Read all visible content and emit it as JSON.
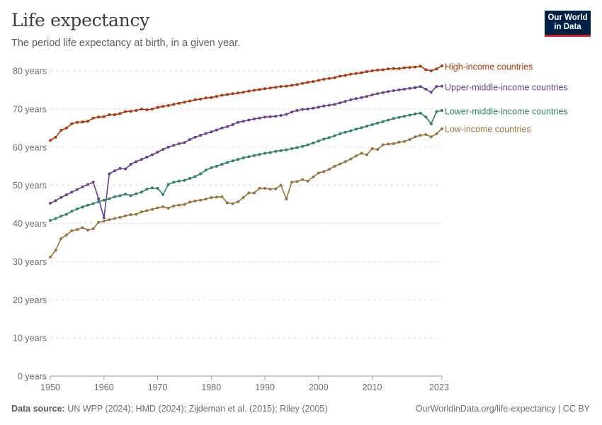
{
  "header": {
    "title": "Life expectancy",
    "subtitle": "The period life expectancy at birth, in a given year."
  },
  "logo": {
    "line1": "Our World",
    "line2": "in Data",
    "bg": "#002147",
    "accent": "#ce261e"
  },
  "footer": {
    "source_label": "Data source:",
    "source_text": "UN WPP (2024); HMD (2024); Zijdeman et al. (2015); Riley (2005)",
    "url_license": "OurWorldinData.org/life-expectancy | CC BY"
  },
  "chart_data": {
    "type": "line",
    "title": "Life expectancy",
    "subtitle": "The period life expectancy at birth, in a given year.",
    "x_ticks": [
      "1950",
      "1960",
      "1970",
      "1980",
      "1990",
      "2000",
      "2010",
      "2023"
    ],
    "y_ticks": [
      "0 years",
      "10 years",
      "20 years",
      "30 years",
      "40 years",
      "50 years",
      "60 years",
      "70 years",
      "80 years"
    ],
    "xlim": [
      1950,
      2023
    ],
    "ylim": [
      0,
      80
    ],
    "grid": "horizontal-dashed",
    "legend": "inline-right",
    "x": [
      1950,
      1951,
      1952,
      1953,
      1954,
      1955,
      1956,
      1957,
      1958,
      1959,
      1960,
      1961,
      1962,
      1963,
      1964,
      1965,
      1966,
      1967,
      1968,
      1969,
      1970,
      1971,
      1972,
      1973,
      1974,
      1975,
      1976,
      1977,
      1978,
      1979,
      1980,
      1981,
      1982,
      1983,
      1984,
      1985,
      1986,
      1987,
      1988,
      1989,
      1990,
      1991,
      1992,
      1993,
      1994,
      1995,
      1996,
      1997,
      1998,
      1999,
      2000,
      2001,
      2002,
      2003,
      2004,
      2005,
      2006,
      2007,
      2008,
      2009,
      2010,
      2011,
      2012,
      2013,
      2014,
      2015,
      2016,
      2017,
      2018,
      2019,
      2020,
      2021,
      2022,
      2023
    ],
    "series": [
      {
        "name": "High-income countries",
        "color": "#b13507",
        "values": [
          61.8,
          62.6,
          64.4,
          65.0,
          66.1,
          66.5,
          66.6,
          66.8,
          67.6,
          67.9,
          68.0,
          68.5,
          68.5,
          68.8,
          69.3,
          69.4,
          69.6,
          70.0,
          69.8,
          70.0,
          70.4,
          70.7,
          70.9,
          71.2,
          71.5,
          71.8,
          72.1,
          72.4,
          72.6,
          72.9,
          73.0,
          73.3,
          73.6,
          73.8,
          74.0,
          74.2,
          74.4,
          74.7,
          74.9,
          75.1,
          75.3,
          75.5,
          75.7,
          75.9,
          76.0,
          76.2,
          76.4,
          76.7,
          77.0,
          77.2,
          77.5,
          77.8,
          78.0,
          78.2,
          78.6,
          78.8,
          79.1,
          79.3,
          79.5,
          79.8,
          80.0,
          80.2,
          80.3,
          80.5,
          80.6,
          80.6,
          80.8,
          80.9,
          81.0,
          81.2,
          80.3,
          80.0,
          80.5,
          81.3
        ]
      },
      {
        "name": "Upper-middle-income countries",
        "color": "#6d3e91",
        "values": [
          45.3,
          46.0,
          46.8,
          47.5,
          48.2,
          48.9,
          49.6,
          50.2,
          50.8,
          46.5,
          41.5,
          53.0,
          53.8,
          54.4,
          54.3,
          55.5,
          56.2,
          56.8,
          57.4,
          58.0,
          58.7,
          59.4,
          60.0,
          60.5,
          60.9,
          61.2,
          62.0,
          62.6,
          63.1,
          63.6,
          64.0,
          64.5,
          65.0,
          65.4,
          65.9,
          66.5,
          66.8,
          67.1,
          67.4,
          67.6,
          67.9,
          68.0,
          68.1,
          68.3,
          68.6,
          69.2,
          69.6,
          69.9,
          70.0,
          70.2,
          70.5,
          70.8,
          71.0,
          71.2,
          71.6,
          72.0,
          72.4,
          72.7,
          73.0,
          73.3,
          73.7,
          74.0,
          74.3,
          74.6,
          74.8,
          75.0,
          75.2,
          75.4,
          75.6,
          75.9,
          75.2,
          74.4,
          75.9,
          76.0
        ]
      },
      {
        "name": "Lower-middle-income countries",
        "color": "#2d8264",
        "values": [
          40.8,
          41.3,
          41.9,
          42.4,
          43.2,
          43.8,
          44.3,
          44.8,
          45.2,
          45.7,
          46.1,
          46.5,
          47.0,
          47.3,
          47.7,
          47.3,
          47.8,
          48.2,
          49.0,
          49.3,
          49.2,
          47.6,
          50.2,
          50.8,
          51.1,
          51.3,
          51.8,
          52.3,
          53.0,
          54.0,
          54.6,
          55.0,
          55.5,
          56.0,
          56.4,
          56.8,
          57.2,
          57.5,
          57.8,
          58.1,
          58.4,
          58.6,
          58.9,
          59.1,
          59.3,
          59.6,
          59.9,
          60.2,
          60.6,
          61.1,
          61.6,
          62.1,
          62.5,
          63.0,
          63.5,
          63.9,
          64.3,
          64.7,
          65.1,
          65.5,
          65.9,
          66.3,
          66.7,
          67.1,
          67.5,
          67.8,
          68.1,
          68.4,
          68.7,
          68.9,
          67.9,
          66.1,
          69.3,
          69.6
        ]
      },
      {
        "name": "Low-income countries",
        "color": "#99743d",
        "values": [
          31.2,
          33.0,
          36.0,
          37.0,
          38.1,
          38.4,
          38.9,
          38.3,
          38.6,
          40.3,
          40.6,
          41.0,
          41.3,
          41.6,
          42.0,
          42.3,
          42.4,
          43.0,
          43.4,
          43.7,
          44.1,
          44.4,
          44.0,
          44.6,
          44.8,
          45.0,
          45.6,
          45.9,
          46.1,
          46.4,
          46.8,
          46.9,
          47.0,
          45.4,
          45.2,
          45.7,
          46.8,
          48.0,
          48.0,
          49.2,
          49.2,
          49.0,
          49.1,
          50.0,
          46.4,
          50.8,
          51.0,
          51.5,
          51.1,
          52.2,
          53.2,
          53.6,
          54.2,
          55.0,
          55.6,
          56.2,
          56.9,
          57.7,
          58.4,
          58.0,
          59.6,
          59.4,
          60.6,
          60.8,
          60.9,
          61.3,
          61.5,
          62.0,
          62.7,
          63.1,
          63.3,
          62.7,
          63.5,
          64.8
        ]
      }
    ]
  }
}
